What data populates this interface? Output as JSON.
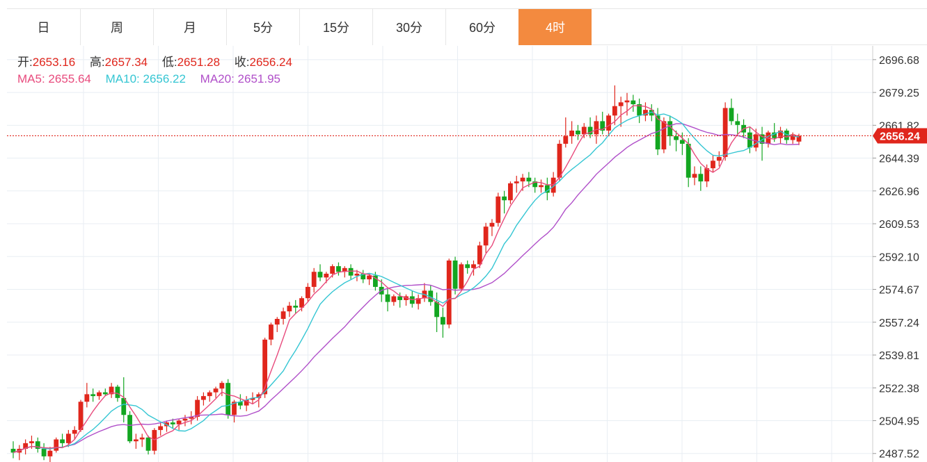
{
  "tabs": [
    {
      "label": "日",
      "active": false
    },
    {
      "label": "周",
      "active": false
    },
    {
      "label": "月",
      "active": false
    },
    {
      "label": "5分",
      "active": false
    },
    {
      "label": "15分",
      "active": false
    },
    {
      "label": "30分",
      "active": false
    },
    {
      "label": "60分",
      "active": false
    },
    {
      "label": "4时",
      "active": true
    }
  ],
  "ohlc": {
    "open_label": "开:",
    "open": "2653.16",
    "high_label": "高:",
    "high": "2657.34",
    "low_label": "低:",
    "low": "2651.28",
    "close_label": "收:",
    "close": "2656.24"
  },
  "ma": {
    "ma5_label": "MA5:",
    "ma5": "2655.64",
    "ma10_label": "MA10:",
    "ma10": "2656.22",
    "ma20_label": "MA20:",
    "ma20": "2651.95"
  },
  "colors": {
    "up": "#e0261c",
    "down": "#13a621",
    "active_tab": "#f38a3f",
    "ma5": "#e84b7d",
    "ma10": "#35c6d3",
    "ma20": "#b04fc9",
    "grid": "#e8eef3"
  },
  "chart_data": {
    "type": "candlestick",
    "y_ticks": [
      "2696.68",
      "2679.25",
      "2661.82",
      "2644.39",
      "2626.96",
      "2609.53",
      "2592.10",
      "2574.67",
      "2557.24",
      "2539.81",
      "2522.38",
      "2504.95",
      "2487.52"
    ],
    "ylim": [
      2483,
      2704
    ],
    "last_price": "2656.24",
    "candles": [
      [
        2490,
        2494,
        2485,
        2488
      ],
      [
        2488,
        2492,
        2484,
        2490
      ],
      [
        2490,
        2495,
        2487,
        2493
      ],
      [
        2493,
        2497,
        2490,
        2494
      ],
      [
        2494,
        2496,
        2488,
        2490
      ],
      [
        2490,
        2493,
        2484,
        2486
      ],
      [
        2486,
        2491,
        2483,
        2489
      ],
      [
        2489,
        2496,
        2488,
        2495
      ],
      [
        2495,
        2498,
        2491,
        2493
      ],
      [
        2493,
        2500,
        2491,
        2498
      ],
      [
        2498,
        2502,
        2495,
        2500
      ],
      [
        2500,
        2516,
        2499,
        2515
      ],
      [
        2515,
        2525,
        2512,
        2519
      ],
      [
        2519,
        2522,
        2515,
        2518
      ],
      [
        2518,
        2521,
        2516,
        2520
      ],
      [
        2520,
        2522,
        2518,
        2519
      ],
      [
        2519,
        2525,
        2517,
        2523
      ],
      [
        2523,
        2524,
        2515,
        2517
      ],
      [
        2517,
        2528,
        2504,
        2508
      ],
      [
        2508,
        2510,
        2493,
        2494
      ],
      [
        2494,
        2498,
        2490,
        2495
      ],
      [
        2495,
        2498,
        2491,
        2496
      ],
      [
        2496,
        2497,
        2487,
        2489
      ],
      [
        2489,
        2501,
        2487,
        2500
      ],
      [
        2500,
        2504,
        2497,
        2502
      ],
      [
        2502,
        2505,
        2499,
        2504
      ],
      [
        2504,
        2506,
        2501,
        2503
      ],
      [
        2503,
        2506,
        2500,
        2505
      ],
      [
        2505,
        2508,
        2502,
        2506
      ],
      [
        2506,
        2510,
        2503,
        2507
      ],
      [
        2507,
        2518,
        2505,
        2516
      ],
      [
        2516,
        2520,
        2513,
        2518
      ],
      [
        2518,
        2521,
        2515,
        2520
      ],
      [
        2520,
        2523,
        2517,
        2522
      ],
      [
        2522,
        2526,
        2518,
        2525
      ],
      [
        2525,
        2527,
        2506,
        2508
      ],
      [
        2508,
        2516,
        2504,
        2515
      ],
      [
        2515,
        2519,
        2511,
        2513
      ],
      [
        2513,
        2518,
        2510,
        2516
      ],
      [
        2516,
        2520,
        2514,
        2517
      ],
      [
        2517,
        2520,
        2512,
        2519
      ],
      [
        2519,
        2549,
        2517,
        2548
      ],
      [
        2548,
        2557,
        2545,
        2556
      ],
      [
        2556,
        2560,
        2552,
        2559
      ],
      [
        2559,
        2565,
        2556,
        2563
      ],
      [
        2563,
        2568,
        2560,
        2566
      ],
      [
        2566,
        2569,
        2562,
        2565
      ],
      [
        2565,
        2571,
        2563,
        2570
      ],
      [
        2570,
        2578,
        2568,
        2576
      ],
      [
        2576,
        2586,
        2573,
        2584
      ],
      [
        2584,
        2588,
        2579,
        2581
      ],
      [
        2581,
        2584,
        2578,
        2583
      ],
      [
        2583,
        2588,
        2581,
        2587
      ],
      [
        2587,
        2589,
        2582,
        2584
      ],
      [
        2584,
        2587,
        2581,
        2586
      ],
      [
        2586,
        2588,
        2580,
        2582
      ],
      [
        2582,
        2585,
        2579,
        2583
      ],
      [
        2583,
        2585,
        2578,
        2580
      ],
      [
        2580,
        2583,
        2577,
        2582
      ],
      [
        2582,
        2584,
        2574,
        2576
      ],
      [
        2576,
        2580,
        2568,
        2572
      ],
      [
        2572,
        2575,
        2563,
        2568
      ],
      [
        2568,
        2572,
        2566,
        2571
      ],
      [
        2571,
        2573,
        2565,
        2569
      ],
      [
        2569,
        2572,
        2566,
        2571
      ],
      [
        2571,
        2574,
        2565,
        2567
      ],
      [
        2567,
        2572,
        2564,
        2570
      ],
      [
        2570,
        2578,
        2568,
        2574
      ],
      [
        2574,
        2577,
        2566,
        2568
      ],
      [
        2568,
        2573,
        2552,
        2560
      ],
      [
        2560,
        2565,
        2549,
        2556
      ],
      [
        2556,
        2591,
        2554,
        2590
      ],
      [
        2590,
        2592,
        2572,
        2575
      ],
      [
        2575,
        2589,
        2574,
        2588
      ],
      [
        2588,
        2590,
        2583,
        2586
      ],
      [
        2586,
        2590,
        2582,
        2588
      ],
      [
        2588,
        2600,
        2586,
        2598
      ],
      [
        2598,
        2610,
        2594,
        2608
      ],
      [
        2608,
        2612,
        2603,
        2610
      ],
      [
        2610,
        2626,
        2608,
        2624
      ],
      [
        2624,
        2627,
        2615,
        2622
      ],
      [
        2622,
        2632,
        2620,
        2631
      ],
      [
        2631,
        2635,
        2626,
        2632
      ],
      [
        2632,
        2636,
        2627,
        2634
      ],
      [
        2634,
        2637,
        2629,
        2632
      ],
      [
        2632,
        2634,
        2626,
        2629
      ],
      [
        2629,
        2633,
        2626,
        2630
      ],
      [
        2630,
        2634,
        2622,
        2626
      ],
      [
        2626,
        2637,
        2624,
        2634
      ],
      [
        2634,
        2654,
        2632,
        2652
      ],
      [
        2652,
        2666,
        2650,
        2656
      ],
      [
        2656,
        2664,
        2652,
        2659
      ],
      [
        2659,
        2662,
        2654,
        2657
      ],
      [
        2657,
        2663,
        2655,
        2661
      ],
      [
        2661,
        2666,
        2655,
        2657
      ],
      [
        2657,
        2667,
        2652,
        2664
      ],
      [
        2664,
        2669,
        2657,
        2659
      ],
      [
        2659,
        2668,
        2656,
        2667
      ],
      [
        2667,
        2683,
        2662,
        2672
      ],
      [
        2672,
        2677,
        2661,
        2674
      ],
      [
        2674,
        2679,
        2667,
        2675
      ],
      [
        2675,
        2678,
        2669,
        2673
      ],
      [
        2673,
        2676,
        2663,
        2667
      ],
      [
        2667,
        2674,
        2664,
        2670
      ],
      [
        2670,
        2673,
        2664,
        2667
      ],
      [
        2667,
        2671,
        2646,
        2649
      ],
      [
        2649,
        2666,
        2647,
        2664
      ],
      [
        2664,
        2667,
        2651,
        2656
      ],
      [
        2656,
        2659,
        2648,
        2654
      ],
      [
        2654,
        2658,
        2646,
        2652
      ],
      [
        2652,
        2655,
        2629,
        2634
      ],
      [
        2634,
        2640,
        2630,
        2636
      ],
      [
        2636,
        2640,
        2627,
        2632
      ],
      [
        2632,
        2641,
        2629,
        2639
      ],
      [
        2639,
        2646,
        2637,
        2643
      ],
      [
        2643,
        2648,
        2640,
        2645
      ],
      [
        2645,
        2674,
        2643,
        2671
      ],
      [
        2671,
        2676,
        2662,
        2664
      ],
      [
        2664,
        2668,
        2656,
        2662
      ],
      [
        2662,
        2665,
        2655,
        2658
      ],
      [
        2658,
        2661,
        2647,
        2650
      ],
      [
        2650,
        2660,
        2648,
        2657
      ],
      [
        2657,
        2661,
        2643,
        2652
      ],
      [
        2652,
        2659,
        2650,
        2658
      ],
      [
        2658,
        2663,
        2653,
        2655
      ],
      [
        2655,
        2661,
        2652,
        2659
      ],
      [
        2659,
        2660,
        2652,
        2654
      ],
      [
        2654,
        2658,
        2652,
        2657
      ],
      [
        2653.16,
        2657.34,
        2651.28,
        2656.24
      ]
    ]
  }
}
